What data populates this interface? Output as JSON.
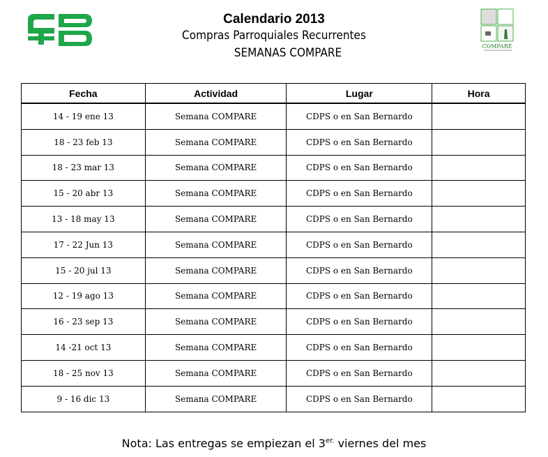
{
  "header": {
    "title": "Calendario 2013",
    "subtitle": "Compras Parroquiales Recurrentes",
    "subtitle2": "SEMANAS COMPARE",
    "left_logo": "CB",
    "right_logo": "COMPARE",
    "brand_color": "#1fa64a"
  },
  "table": {
    "columns": [
      "Fecha",
      "Actividad",
      "Lugar",
      "Hora"
    ],
    "rows": [
      {
        "fecha": "14 - 19 ene 13",
        "actividad": "Semana COMPARE",
        "lugar": "CDPS o en San Bernardo",
        "hora": ""
      },
      {
        "fecha": "18 - 23 feb 13",
        "actividad": "Semana COMPARE",
        "lugar": "CDPS o en San Bernardo",
        "hora": ""
      },
      {
        "fecha": "18 - 23 mar 13",
        "actividad": "Semana COMPARE",
        "lugar": "CDPS o en San Bernardo",
        "hora": ""
      },
      {
        "fecha": "15 - 20 abr 13",
        "actividad": "Semana COMPARE",
        "lugar": "CDPS o en San Bernardo",
        "hora": ""
      },
      {
        "fecha": "13 - 18 may 13",
        "actividad": "Semana COMPARE",
        "lugar": "CDPS o en San Bernardo",
        "hora": ""
      },
      {
        "fecha": "17 - 22 Jun 13",
        "actividad": "Semana COMPARE",
        "lugar": "CDPS o en San Bernardo",
        "hora": ""
      },
      {
        "fecha": "15 - 20 jul 13",
        "actividad": "Semana COMPARE",
        "lugar": "CDPS o en San Bernardo",
        "hora": ""
      },
      {
        "fecha": "12 - 19 ago 13",
        "actividad": "Semana COMPARE",
        "lugar": "CDPS o en San Bernardo",
        "hora": ""
      },
      {
        "fecha": "16 - 23 sep 13",
        "actividad": "Semana COMPARE",
        "lugar": "CDPS o en San Bernardo",
        "hora": ""
      },
      {
        "fecha": "14 -21 oct 13",
        "actividad": "Semana COMPARE",
        "lugar": "CDPS o en San Bernardo",
        "hora": ""
      },
      {
        "fecha": "18 - 25 nov 13",
        "actividad": "Semana COMPARE",
        "lugar": "CDPS o en San Bernardo",
        "hora": ""
      },
      {
        "fecha": "9 - 16 dic 13",
        "actividad": "Semana COMPARE",
        "lugar": "CDPS o en San Bernardo",
        "hora": ""
      }
    ]
  },
  "note": {
    "before": "Nota: Las entregas se empiezan el 3",
    "sup": "er.",
    "after": " viernes del mes"
  }
}
